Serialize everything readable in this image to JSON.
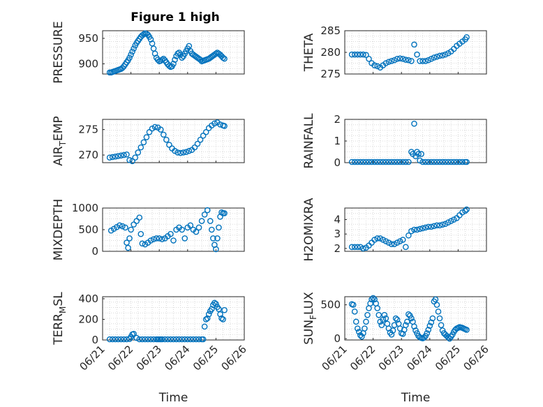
{
  "figure": {
    "title": "Figure 1 high",
    "xlabel": "Time",
    "x_ticks": [
      "06/21",
      "06/22",
      "06/23",
      "06/24",
      "06/25",
      "06/26"
    ],
    "marker_color": "#0072BD"
  },
  "chart_data": [
    {
      "type": "scatter",
      "ylabel": "PRESSURE",
      "ylim": [
        880,
        965
      ],
      "yticks": [
        900,
        950
      ],
      "title": "Figure 1 high",
      "x": [
        21.25,
        21.3,
        21.35,
        21.4,
        21.45,
        21.5,
        21.55,
        21.6,
        21.65,
        21.7,
        21.75,
        21.8,
        21.85,
        21.9,
        21.95,
        22.0,
        22.05,
        22.1,
        22.15,
        22.2,
        22.25,
        22.3,
        22.35,
        22.4,
        22.45,
        22.5,
        22.55,
        22.6,
        22.65,
        22.7,
        22.75,
        22.8,
        22.85,
        22.9,
        22.95,
        23.0,
        23.05,
        23.1,
        23.15,
        23.2,
        23.25,
        23.3,
        23.35,
        23.4,
        23.45,
        23.5,
        23.55,
        23.6,
        23.65,
        23.7,
        23.75,
        23.8,
        23.85,
        23.9,
        23.95,
        24.0,
        24.05,
        24.1,
        24.15,
        24.2,
        24.25,
        24.3,
        24.35,
        24.4,
        24.45,
        24.5,
        24.55,
        24.6,
        24.65,
        24.7,
        24.75,
        24.8,
        24.85,
        24.9,
        24.95,
        25.0,
        25.05,
        25.1,
        25.15,
        25.2,
        25.25,
        25.3
      ],
      "y": [
        883,
        883,
        884,
        885,
        886,
        887,
        888,
        889,
        890,
        892,
        895,
        899,
        903,
        907,
        912,
        918,
        924,
        930,
        936,
        941,
        945,
        949,
        953,
        956,
        958,
        960,
        959,
        957,
        953,
        948,
        940,
        930,
        920,
        912,
        908,
        905,
        906,
        908,
        910,
        907,
        903,
        899,
        896,
        894,
        895,
        900,
        908,
        915,
        920,
        922,
        918,
        912,
        915,
        920,
        925,
        930,
        935,
        925,
        920,
        918,
        916,
        914,
        912,
        910,
        908,
        905,
        906,
        907,
        908,
        909,
        910,
        912,
        914,
        916,
        918,
        920,
        922,
        920,
        918,
        915,
        912,
        910
      ]
    },
    {
      "type": "scatter",
      "ylabel": "THETA",
      "ylim": [
        275,
        285
      ],
      "yticks": [
        275,
        280,
        285
      ],
      "x": [
        21.25,
        21.35,
        21.45,
        21.55,
        21.65,
        21.75,
        21.85,
        21.95,
        22.05,
        22.15,
        22.25,
        22.35,
        22.45,
        22.55,
        22.65,
        22.75,
        22.85,
        22.95,
        23.05,
        23.15,
        23.25,
        23.35,
        23.45,
        23.55,
        23.65,
        23.75,
        23.85,
        23.95,
        24.05,
        24.15,
        24.25,
        24.35,
        24.45,
        24.55,
        24.65,
        24.75,
        24.85,
        24.95,
        25.05,
        25.15,
        25.25,
        25.3
      ],
      "y": [
        279.5,
        279.5,
        279.5,
        279.5,
        279.5,
        279.4,
        278.5,
        277.5,
        277.0,
        276.8,
        276.5,
        277.0,
        277.5,
        277.8,
        278.0,
        278.2,
        278.5,
        278.6,
        278.5,
        278.3,
        278.2,
        278.0,
        281.8,
        279.5,
        278.0,
        278.0,
        278.0,
        278.2,
        278.5,
        278.8,
        279.0,
        279.2,
        279.3,
        279.5,
        279.8,
        280.2,
        280.8,
        281.5,
        282.0,
        282.5,
        283.0,
        283.5
      ]
    },
    {
      "type": "scatter",
      "ylabel": "AIR_TEMP",
      "ylim": [
        268.5,
        277
      ],
      "yticks": [
        270,
        275
      ],
      "x": [
        21.25,
        21.35,
        21.45,
        21.55,
        21.65,
        21.75,
        21.85,
        21.95,
        22.05,
        22.15,
        22.25,
        22.35,
        22.45,
        22.55,
        22.65,
        22.75,
        22.85,
        22.95,
        23.05,
        23.15,
        23.25,
        23.35,
        23.45,
        23.55,
        23.65,
        23.75,
        23.85,
        23.95,
        24.05,
        24.15,
        24.25,
        24.35,
        24.45,
        24.55,
        24.65,
        24.75,
        24.85,
        24.95,
        25.05,
        25.15,
        25.25,
        25.3
      ],
      "y": [
        269.5,
        269.6,
        269.7,
        269.8,
        269.9,
        270.0,
        270.1,
        269.0,
        268.8,
        269.5,
        270.5,
        271.5,
        272.5,
        273.5,
        274.5,
        275.2,
        275.5,
        275.4,
        275.0,
        274.0,
        273.0,
        272.0,
        271.3,
        270.8,
        270.5,
        270.4,
        270.5,
        270.6,
        270.8,
        271.0,
        271.5,
        272.2,
        273.0,
        273.8,
        274.5,
        275.3,
        275.8,
        276.2,
        276.4,
        276.0,
        275.8,
        275.7
      ]
    },
    {
      "type": "scatter",
      "ylabel": "RAINFALL",
      "ylim": [
        0,
        2
      ],
      "yticks": [
        0,
        1,
        2
      ],
      "x": [
        21.25,
        21.35,
        21.45,
        21.55,
        21.65,
        21.75,
        21.85,
        21.95,
        22.05,
        22.15,
        22.25,
        22.35,
        22.45,
        22.55,
        22.65,
        22.75,
        22.85,
        22.95,
        23.05,
        23.15,
        23.25,
        23.35,
        23.4,
        23.45,
        23.5,
        23.55,
        23.6,
        23.65,
        23.7,
        23.75,
        23.85,
        23.95,
        24.05,
        24.15,
        24.25,
        24.35,
        24.45,
        24.55,
        24.65,
        24.75,
        24.85,
        24.95,
        25.05,
        25.15,
        25.25,
        25.3
      ],
      "y": [
        0,
        0,
        0,
        0,
        0,
        0,
        0,
        0,
        0,
        0,
        0,
        0,
        0,
        0,
        0,
        0,
        0,
        0,
        0,
        0,
        0,
        0.5,
        0.4,
        1.8,
        0.3,
        0.5,
        0.4,
        0.1,
        0.4,
        0,
        0,
        0,
        0,
        0,
        0,
        0,
        0,
        0,
        0,
        0,
        0,
        0,
        0,
        0,
        0,
        0
      ]
    },
    {
      "type": "scatter",
      "ylabel": "MIXDEPTH",
      "ylim": [
        0,
        1000
      ],
      "yticks": [
        0,
        500,
        1000
      ],
      "x": [
        21.3,
        21.4,
        21.5,
        21.6,
        21.7,
        21.8,
        21.85,
        21.9,
        21.95,
        22.0,
        22.1,
        22.2,
        22.3,
        22.35,
        22.4,
        22.5,
        22.6,
        22.7,
        22.8,
        22.9,
        23.0,
        23.1,
        23.2,
        23.3,
        23.4,
        23.5,
        23.6,
        23.7,
        23.8,
        23.9,
        24.0,
        24.1,
        24.2,
        24.3,
        24.4,
        24.5,
        24.6,
        24.7,
        24.8,
        24.85,
        24.9,
        24.95,
        25.0,
        25.05,
        25.1,
        25.15,
        25.2,
        25.25,
        25.3
      ],
      "y": [
        480,
        520,
        560,
        600,
        580,
        550,
        200,
        80,
        300,
        500,
        620,
        700,
        780,
        400,
        180,
        160,
        200,
        250,
        280,
        300,
        300,
        280,
        300,
        350,
        400,
        250,
        500,
        550,
        500,
        300,
        550,
        600,
        500,
        450,
        550,
        700,
        850,
        950,
        700,
        500,
        300,
        150,
        50,
        300,
        550,
        800,
        900,
        880,
        880
      ]
    },
    {
      "type": "scatter",
      "ylabel": "H2OMIXRA",
      "ylim": [
        1.8,
        4.8
      ],
      "yticks": [
        2,
        3,
        4
      ],
      "x": [
        21.25,
        21.35,
        21.45,
        21.55,
        21.65,
        21.75,
        21.85,
        21.95,
        22.05,
        22.15,
        22.25,
        22.35,
        22.45,
        22.55,
        22.65,
        22.75,
        22.85,
        22.95,
        23.05,
        23.15,
        23.25,
        23.35,
        23.45,
        23.55,
        23.65,
        23.75,
        23.85,
        23.95,
        24.05,
        24.15,
        24.25,
        24.35,
        24.45,
        24.55,
        24.65,
        24.75,
        24.85,
        24.95,
        25.05,
        25.15,
        25.25,
        25.3
      ],
      "y": [
        2.1,
        2.1,
        2.1,
        2.1,
        2.0,
        2.05,
        2.2,
        2.4,
        2.6,
        2.7,
        2.7,
        2.6,
        2.5,
        2.4,
        2.3,
        2.3,
        2.4,
        2.5,
        2.6,
        2.1,
        2.9,
        3.2,
        3.3,
        3.3,
        3.35,
        3.4,
        3.45,
        3.5,
        3.5,
        3.55,
        3.6,
        3.6,
        3.65,
        3.7,
        3.8,
        3.9,
        4.0,
        4.1,
        4.3,
        4.5,
        4.6,
        4.7
      ]
    },
    {
      "type": "scatter",
      "ylabel": "TERR_MSL",
      "ylim": [
        0,
        420
      ],
      "yticks": [
        0,
        200,
        400
      ],
      "x": [
        21.25,
        21.35,
        21.45,
        21.55,
        21.65,
        21.75,
        21.85,
        21.95,
        22.0,
        22.05,
        22.1,
        22.2,
        22.3,
        22.4,
        22.5,
        22.6,
        22.7,
        22.8,
        22.9,
        22.95,
        23.0,
        23.05,
        23.1,
        23.2,
        23.3,
        23.4,
        23.5,
        23.6,
        23.7,
        23.8,
        23.9,
        24.0,
        24.1,
        24.2,
        24.3,
        24.4,
        24.5,
        24.55,
        24.6,
        24.65,
        24.7,
        24.75,
        24.8,
        24.85,
        24.9,
        24.95,
        25.0,
        25.05,
        25.1,
        25.15,
        25.2,
        25.25,
        25.3
      ],
      "y": [
        0,
        0,
        0,
        0,
        0,
        0,
        0,
        10,
        30,
        55,
        60,
        20,
        0,
        0,
        0,
        0,
        0,
        0,
        0,
        0,
        0,
        0,
        0,
        0,
        0,
        0,
        0,
        0,
        0,
        0,
        0,
        0,
        0,
        0,
        0,
        0,
        0,
        5,
        130,
        200,
        210,
        250,
        280,
        300,
        340,
        360,
        350,
        320,
        300,
        250,
        210,
        200,
        290
      ]
    },
    {
      "type": "scatter",
      "ylabel": "SUN_FLUX",
      "ylim": [
        -20,
        620
      ],
      "yticks": [
        0,
        500
      ],
      "x": [
        21.25,
        21.3,
        21.35,
        21.4,
        21.45,
        21.5,
        21.55,
        21.6,
        21.65,
        21.7,
        21.75,
        21.8,
        21.85,
        21.9,
        21.95,
        22.0,
        22.05,
        22.1,
        22.15,
        22.2,
        22.25,
        22.3,
        22.35,
        22.4,
        22.45,
        22.5,
        22.55,
        22.6,
        22.65,
        22.7,
        22.75,
        22.8,
        22.85,
        22.9,
        22.95,
        23.0,
        23.05,
        23.1,
        23.15,
        23.2,
        23.25,
        23.3,
        23.35,
        23.4,
        23.45,
        23.5,
        23.55,
        23.6,
        23.65,
        23.7,
        23.75,
        23.8,
        23.85,
        23.9,
        23.95,
        24.0,
        24.05,
        24.1,
        24.15,
        24.2,
        24.25,
        24.3,
        24.35,
        24.4,
        24.45,
        24.5,
        24.55,
        24.6,
        24.65,
        24.7,
        24.75,
        24.8,
        24.85,
        24.9,
        24.95,
        25.0,
        25.05,
        25.1,
        25.15,
        25.2,
        25.25,
        25.3
      ],
      "y": [
        510,
        500,
        400,
        250,
        150,
        100,
        50,
        30,
        80,
        150,
        250,
        350,
        450,
        520,
        580,
        600,
        580,
        520,
        450,
        350,
        250,
        200,
        280,
        350,
        300,
        220,
        150,
        90,
        60,
        120,
        200,
        300,
        280,
        220,
        150,
        80,
        70,
        130,
        200,
        250,
        360,
        340,
        300,
        250,
        180,
        120,
        80,
        40,
        20,
        10,
        5,
        15,
        40,
        80,
        130,
        190,
        240,
        300,
        550,
        580,
        500,
        400,
        300,
        200,
        120,
        80,
        60,
        40,
        20,
        0,
        30,
        60,
        100,
        130,
        150,
        160,
        170,
        165,
        160,
        150,
        140,
        130
      ]
    }
  ]
}
